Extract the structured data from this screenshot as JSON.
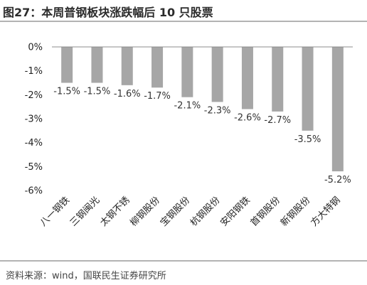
{
  "header": {
    "title": "图27：本周普钢板块涨跌幅后 10 只股票"
  },
  "footer": {
    "source": "资料来源：wind，国联民生证券研究所"
  },
  "colors": {
    "bar": "#a6a6a6",
    "axis": "#8c8c8c",
    "rule": "#b3b3b3"
  },
  "chart_data": {
    "type": "bar",
    "title": "",
    "xlabel": "",
    "ylabel": "",
    "categories": [
      "八一钢铁",
      "三钢闽光",
      "太钢不锈",
      "柳钢股份",
      "宝钢股份",
      "杭钢股份",
      "安阳钢铁",
      "首钢股份",
      "新钢股份",
      "方大特钢"
    ],
    "values": [
      -1.5,
      -1.5,
      -1.6,
      -1.7,
      -2.1,
      -2.3,
      -2.6,
      -2.7,
      -3.5,
      -5.2
    ],
    "data_labels": [
      "-1.5%",
      "-1.5%",
      "-1.6%",
      "-1.7%",
      "-2.1%",
      "-2.3%",
      "-2.6%",
      "-2.7%",
      "-3.5%",
      "-5.2%"
    ],
    "ylim": [
      -6,
      0
    ],
    "yticks": [
      0,
      -1,
      -2,
      -3,
      -4,
      -5,
      -6
    ],
    "ytick_labels": [
      "0%",
      "-1%",
      "-2%",
      "-3%",
      "-4%",
      "-5%",
      "-6%"
    ],
    "grid": false,
    "legend": "none"
  }
}
